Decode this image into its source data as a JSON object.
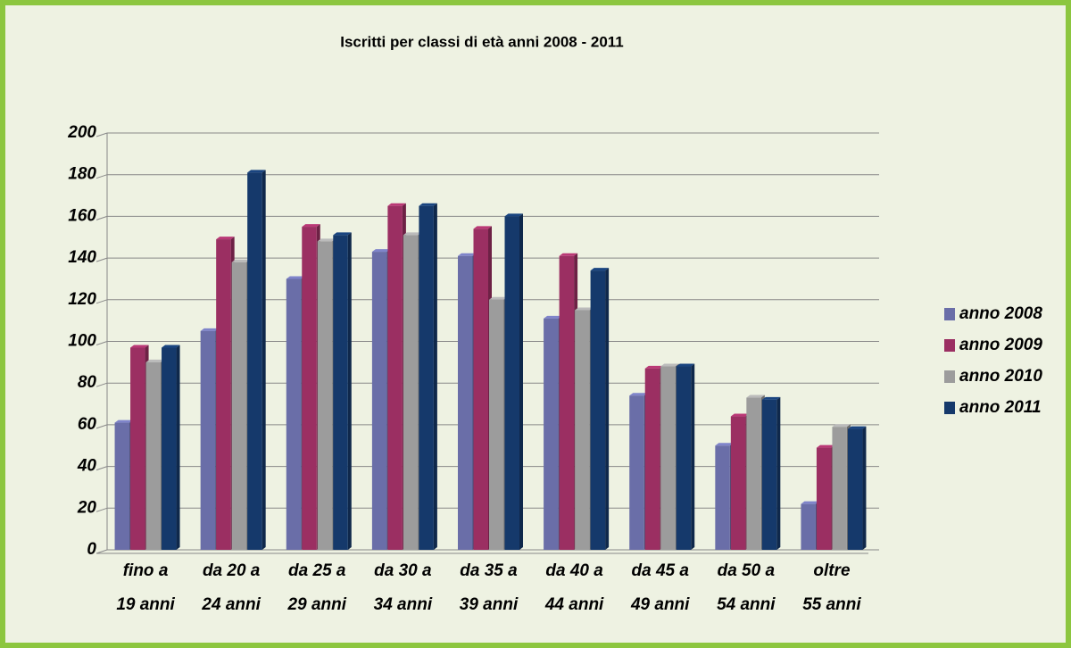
{
  "chart_data": {
    "type": "bar",
    "title": "Iscritti per classi di età anni  2008 - 2011",
    "categories": [
      "fino a 19 anni",
      "da 20 a 24 anni",
      "da 25 a 29 anni",
      "da 30 a 34 anni",
      "da 35 a 39 anni",
      "da 40 a 44 anni",
      "da 45 a 49 anni",
      "da 50 a 54 anni",
      "oltre 55 anni"
    ],
    "series": [
      {
        "name": "anno 2008",
        "color": "#6a6ea8",
        "values": [
          61,
          105,
          130,
          143,
          141,
          111,
          74,
          50,
          22
        ]
      },
      {
        "name": "anno 2009",
        "color": "#9b2f62",
        "values": [
          97,
          149,
          155,
          165,
          154,
          141,
          87,
          64,
          49
        ]
      },
      {
        "name": "anno 2010",
        "color": "#9c9c9c",
        "values": [
          90,
          138,
          148,
          151,
          120,
          115,
          88,
          73,
          59
        ]
      },
      {
        "name": "anno 2011",
        "color": "#15396b",
        "values": [
          97,
          181,
          151,
          165,
          160,
          134,
          88,
          72,
          58
        ]
      }
    ],
    "ylim": [
      0,
      200
    ],
    "yticks": [
      0,
      20,
      40,
      60,
      80,
      100,
      120,
      140,
      160,
      180,
      200
    ],
    "grid": true,
    "legend": "right"
  }
}
